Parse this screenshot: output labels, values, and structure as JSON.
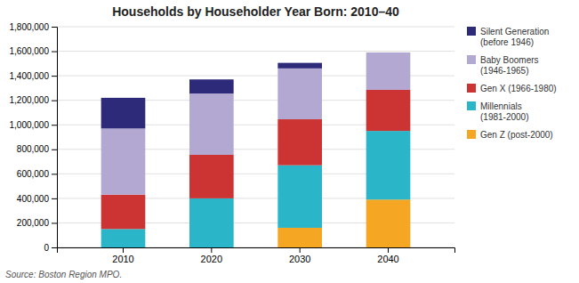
{
  "chart_data": {
    "type": "bar",
    "stacked": true,
    "title": "Households by Householder Year Born: 2010–40",
    "categories": [
      "2010",
      "2020",
      "2030",
      "2040"
    ],
    "series": [
      {
        "name": "Gen Z (post-2000)",
        "color": "#f5a623",
        "values": [
          0,
          0,
          160000,
          390000
        ]
      },
      {
        "name": "Millennials\n(1981-2000)",
        "color": "#2bb5c8",
        "values": [
          150000,
          400000,
          510000,
          560000
        ]
      },
      {
        "name": "Gen X (1966-1980)",
        "color": "#cc3333",
        "values": [
          280000,
          355000,
          375000,
          335000
        ]
      },
      {
        "name": "Baby Boomers\n(1946-1965)",
        "color": "#b3a8d1",
        "values": [
          540000,
          500000,
          415000,
          305000
        ]
      },
      {
        "name": "Silent Generation\n(before 1946)",
        "color": "#2e2a7a",
        "values": [
          250000,
          115000,
          45000,
          0
        ]
      }
    ],
    "ylim": [
      0,
      1800000
    ],
    "yticks": [
      0,
      {
        "value": 200000,
        "label": "200,000"
      },
      {
        "value": 400000,
        "label": "400,000"
      },
      {
        "value": 600000,
        "label": "600,000"
      },
      {
        "value": 800000,
        "label": "800,000"
      },
      {
        "value": 1000000,
        "label": "1,000,000"
      },
      {
        "value": 1200000,
        "label": "1,200,000"
      },
      {
        "value": 1400000,
        "label": "1,400,000"
      },
      {
        "value": 1600000,
        "label": "1,600,000"
      },
      {
        "value": 1800000,
        "label": "1,800,000"
      }
    ],
    "grid": true,
    "legend": "right",
    "annotations": [
      "Source: Boston Region MPO."
    ]
  }
}
